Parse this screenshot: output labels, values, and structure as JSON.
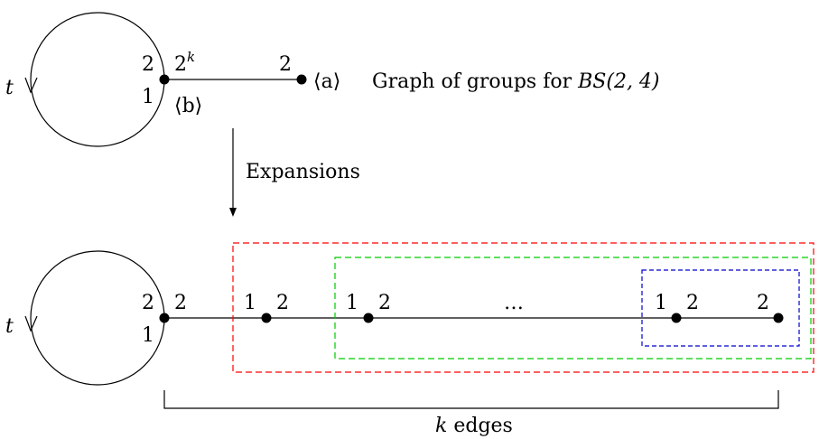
{
  "top": {
    "loop_label": "t",
    "vertex_b": {
      "loop_in": "2",
      "loop_out": "1",
      "edge_end": "2",
      "edge_end_exp": "k",
      "group": "⟨b⟩"
    },
    "vertex_a": {
      "edge_end": "2",
      "group": "⟨a⟩"
    },
    "caption_prefix": "Graph of groups for ",
    "caption_math": "BS(2, 4)"
  },
  "arrow": {
    "label": "Expansions"
  },
  "bottom": {
    "loop_label": "t",
    "base": {
      "loop_in": "2",
      "loop_out": "1",
      "edge_end": "2"
    },
    "vertices": [
      {
        "left": "1",
        "right": "2"
      },
      {
        "left": "1",
        "right": "2"
      }
    ],
    "ellipsis": "…",
    "last_inner": {
      "left": "1",
      "right": "2"
    },
    "terminal": {
      "left": "2"
    },
    "brace_label_var": "k",
    "brace_label_text": " edges"
  },
  "colors": {
    "outer_box": "#ff0000",
    "middle_box": "#00cc00",
    "inner_box": "#0000cc"
  }
}
